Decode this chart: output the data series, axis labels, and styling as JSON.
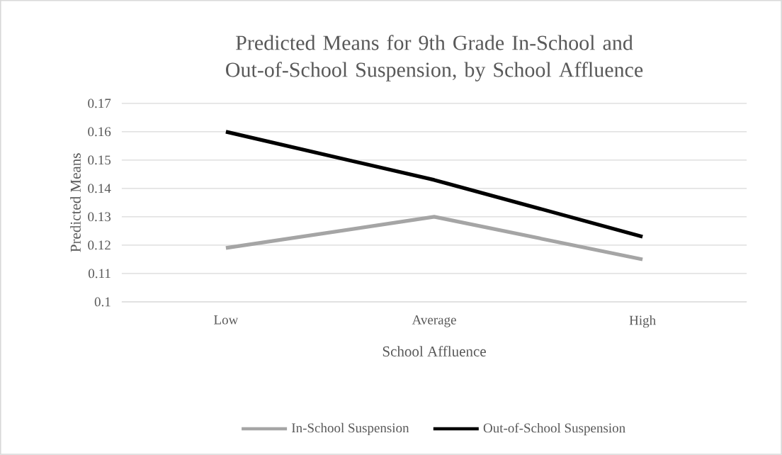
{
  "chart_data": {
    "type": "line",
    "title": "Predicted Means for 9th Grade In-School and Out-of-School Suspension, by School Affluence",
    "xlabel": "School Affluence",
    "ylabel": "Predicted Means",
    "categories": [
      "Low",
      "Average",
      "High"
    ],
    "series": [
      {
        "name": "In-School Suspension",
        "color": "#a5a5a5",
        "values": [
          0.119,
          0.13,
          0.115
        ]
      },
      {
        "name": "Out-of-School Suspension",
        "color": "#000000",
        "values": [
          0.16,
          0.143,
          0.123
        ]
      }
    ],
    "ylim": [
      0.1,
      0.17
    ],
    "yticks": [
      0.1,
      0.11,
      0.12,
      0.13,
      0.14,
      0.15,
      0.16,
      0.17
    ],
    "grid": "y",
    "legend": "bottom",
    "marker": "none",
    "line_style": "solid"
  }
}
